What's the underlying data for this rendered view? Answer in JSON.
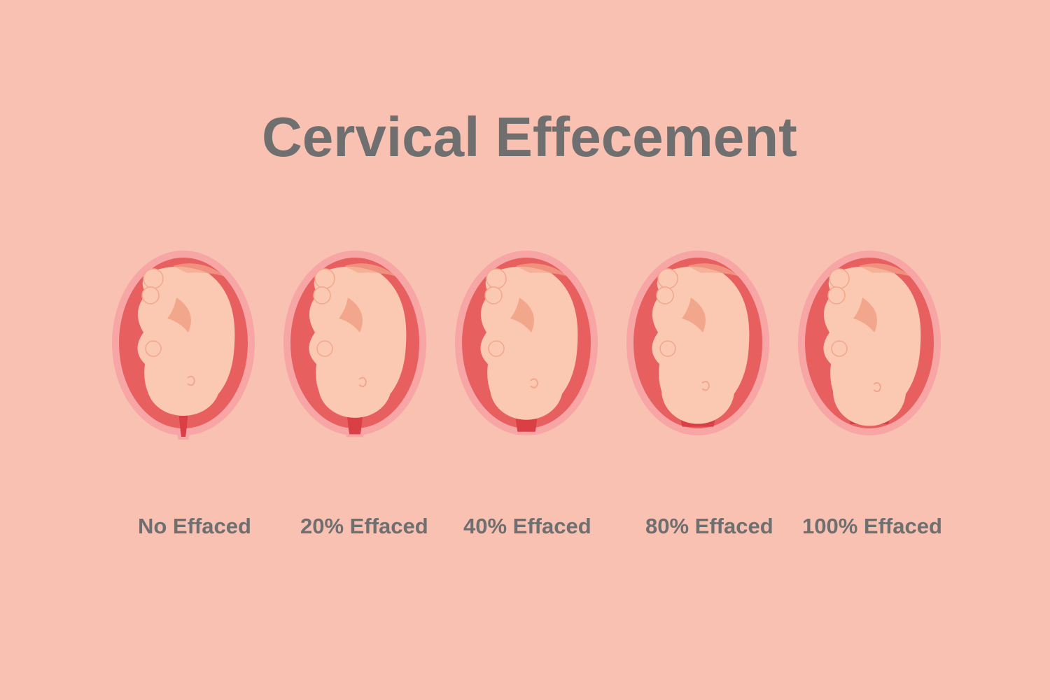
{
  "title": "Cervical Effecement",
  "colors": {
    "background": "#f8c1b2",
    "text": "#6f6f6f",
    "uterus_outer": "#f7a5a5",
    "uterus_wall": "#e85f5f",
    "fetus_skin": "#fbc9b2",
    "fetus_shadow": "#f2a68c",
    "cervix_dark": "#d93f45"
  },
  "stages": [
    {
      "label": "No Effaced",
      "effacement_percent": 0
    },
    {
      "label": "20% Effaced",
      "effacement_percent": 20
    },
    {
      "label": "40% Effaced",
      "effacement_percent": 40
    },
    {
      "label": "80% Effaced",
      "effacement_percent": 80
    },
    {
      "label": "100% Effaced",
      "effacement_percent": 100
    }
  ]
}
